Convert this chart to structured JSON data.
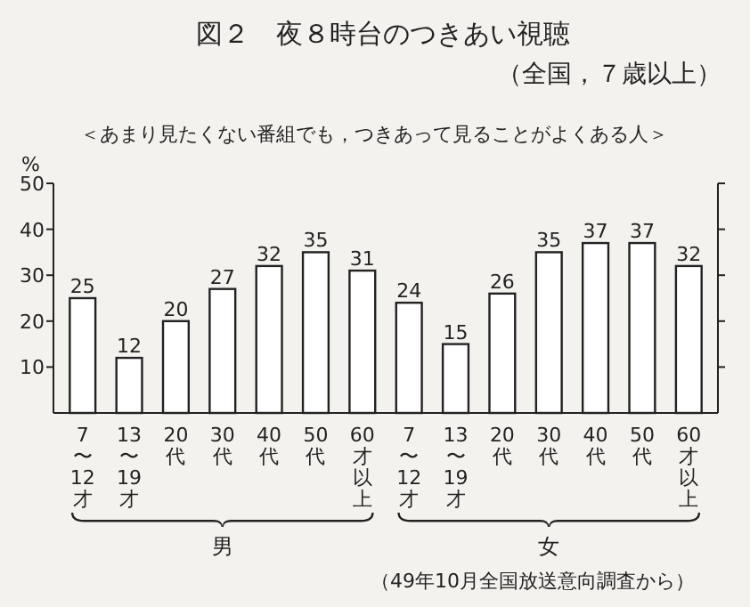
{
  "chart_data": {
    "type": "bar",
    "title": "図２　夜８時台のつきあい視聴",
    "subtitle": "（全国，７歳以上）",
    "ylabel": "%",
    "annotations": [
      "＜あまり見たくない番組でも，つきあって見ることがよくある人＞",
      "男",
      "女",
      "（49年10月全国放送意向調査から）"
    ],
    "categories": [
      "7〜12才",
      "13〜19才",
      "20代",
      "30代",
      "40代",
      "50代",
      "60才以上",
      "7〜12才",
      "13〜19才",
      "20代",
      "30代",
      "40代",
      "50代",
      "60才以上"
    ],
    "values": [
      25,
      12,
      20,
      27,
      32,
      35,
      31,
      24,
      15,
      26,
      35,
      37,
      37,
      32
    ],
    "color": "#ffffff",
    "ylim": [
      0,
      50
    ],
    "yticks": [
      10,
      20,
      30,
      40,
      50
    ],
    "data_labels": true
  }
}
